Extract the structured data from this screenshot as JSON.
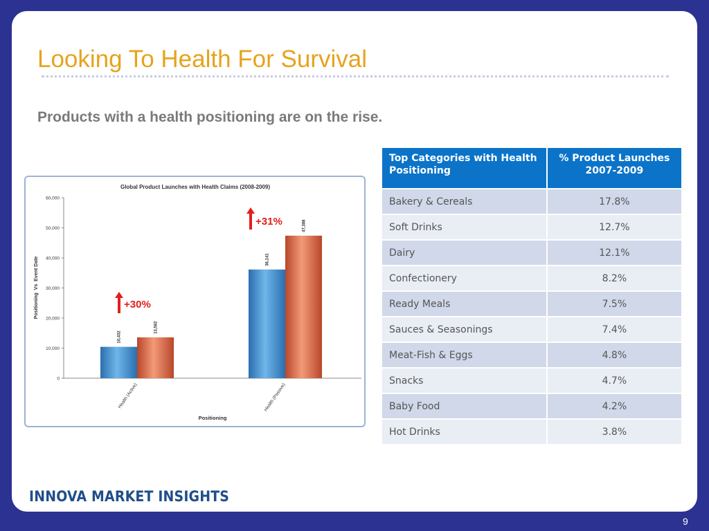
{
  "slide": {
    "title": "Looking To Health For Survival",
    "subtitle": "Products with a health positioning are on the rise.",
    "page_number": "9",
    "footer_logo": "INNOVA MARKET INSIGHTS",
    "colors": {
      "background": "#2b3291",
      "title": "#e6a31d",
      "table_header": "#0b74c9"
    }
  },
  "chart_data": {
    "type": "bar",
    "title": "Global Product Launches with Health Claims (2008-2009)",
    "xlabel": "Positioning",
    "ylabel": "Positioning  Vs  Event Date",
    "categories": [
      "Health (Active)",
      "Health (Passive)"
    ],
    "series": [
      {
        "values": [
          10432,
          36141
        ],
        "color": "#3d8fcf"
      },
      {
        "values": [
          13582,
          47388
        ],
        "color": "#e0704a"
      }
    ],
    "data_labels": [
      [
        "10,432",
        "36,141"
      ],
      [
        "13,582",
        "47,388"
      ]
    ],
    "ylim": [
      0,
      60000
    ],
    "yticks": [
      "0",
      "10,000",
      "20,000",
      "30,000",
      "40,000",
      "50,000",
      "60,000"
    ],
    "grid": false,
    "annotations": [
      "+30%",
      "+31%"
    ]
  },
  "table": {
    "headers": [
      "Top Categories with Health Positioning",
      "% Product Launches 2007-2009"
    ],
    "rows": [
      [
        "Bakery & Cereals",
        "17.8%"
      ],
      [
        "Soft Drinks",
        "12.7%"
      ],
      [
        "Dairy",
        "12.1%"
      ],
      [
        "Confectionery",
        "8.2%"
      ],
      [
        "Ready Meals",
        "7.5%"
      ],
      [
        "Sauces & Seasonings",
        "7.4%"
      ],
      [
        "Meat-Fish & Eggs",
        "4.8%"
      ],
      [
        "Snacks",
        "4.7%"
      ],
      [
        "Baby Food",
        "4.2%"
      ],
      [
        "Hot Drinks",
        "3.8%"
      ]
    ]
  }
}
